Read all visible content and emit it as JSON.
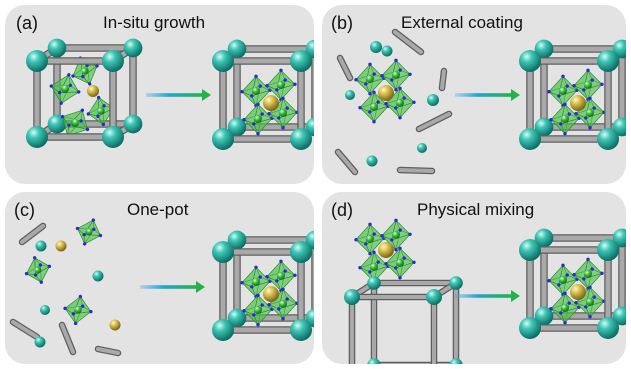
{
  "panels": [
    {
      "id": "a",
      "label": "(a)",
      "title": "In-situ growth"
    },
    {
      "id": "b",
      "label": "(b)",
      "title": "External coating"
    },
    {
      "id": "c",
      "label": "(c)",
      "title": "One-pot"
    },
    {
      "id": "d",
      "label": "(d)",
      "title": "Physical mixing"
    }
  ],
  "colors": {
    "panel_bg": "#e3e3e3",
    "framework_node": "#1aa89a",
    "linker_rod": "#8c8c8c",
    "octahedron": "#4fc24f",
    "center_atom": "#c9b040",
    "vertex_atom": "#2a2ad0",
    "arrow_start": "#3aa6e8",
    "arrow_end": "#22b24a"
  }
}
